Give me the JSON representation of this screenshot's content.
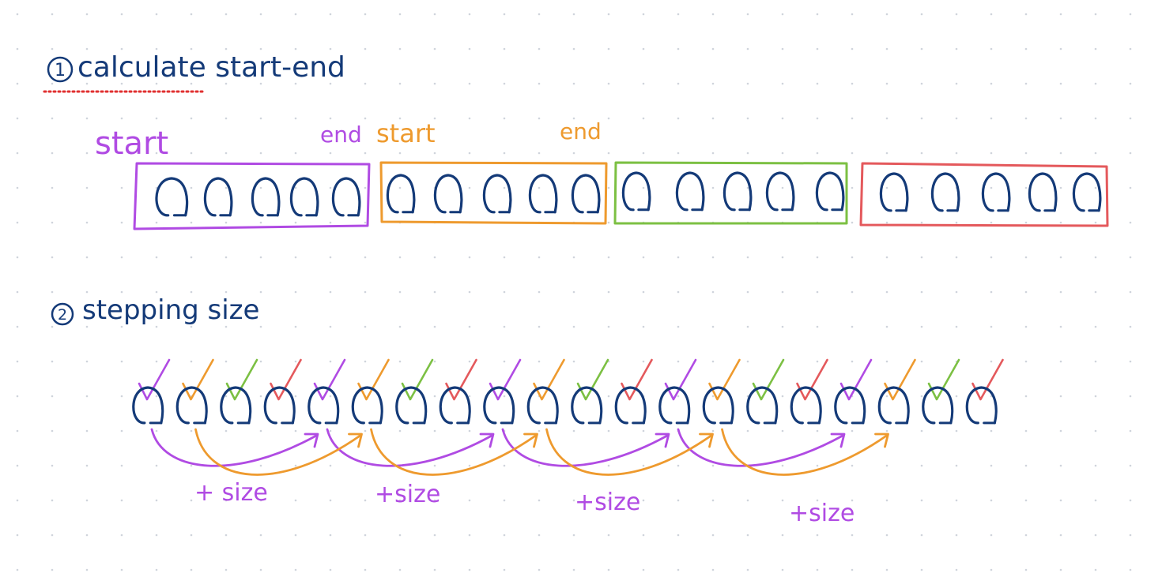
{
  "sections": [
    {
      "number": "1",
      "title": "calculate start-end"
    },
    {
      "number": "2",
      "title": "stepping size"
    }
  ],
  "colors": {
    "ink": "#143a78",
    "purple": "#b04be3",
    "orange": "#ee9a2e",
    "green": "#7cc043",
    "red": "#e4595c",
    "underline": "#e03030",
    "dots": "#cfd4dc"
  },
  "chunking": {
    "groups": [
      {
        "color": "purple",
        "items": 5,
        "start_label": "start",
        "end_label": "end"
      },
      {
        "color": "orange",
        "items": 5,
        "start_label": "start",
        "end_label": "end"
      },
      {
        "color": "green",
        "items": 5
      },
      {
        "color": "red",
        "items": 5
      }
    ]
  },
  "stepping": {
    "items": 20,
    "step_label": "+size",
    "step_labels": [
      "+ size",
      "+size",
      "+size",
      "+size"
    ]
  }
}
